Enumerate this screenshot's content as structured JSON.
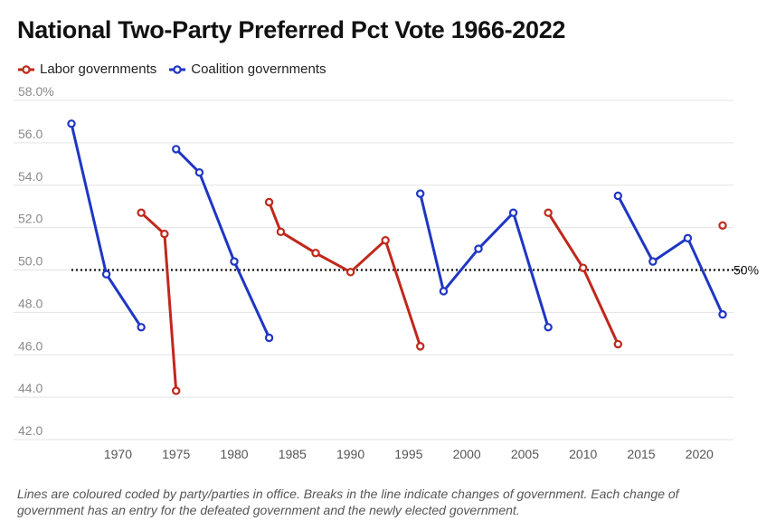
{
  "title": "National Two-Party Preferred Pct Vote 1966-2022",
  "footnote": "Lines are coloured coded by party/parties in office. Breaks in the line indicate changes of government. Each change of government has an entry for the defeated government and the newly elected government.",
  "colors": {
    "labor": "#c0281b",
    "coalition": "#1f36c4",
    "reference": "#111111",
    "grid": "#e3e3e3",
    "axis_text": "#8a8a8a"
  },
  "chart_data": {
    "type": "line",
    "title": "National Two-Party Preferred Pct Vote 1966-2022",
    "xlabel": "",
    "ylabel": "",
    "xlim": [
      1966,
      2022
    ],
    "ylim": [
      42,
      58
    ],
    "y_ticks": [
      "58.0%",
      "56.0",
      "54.0",
      "52.0",
      "50.0",
      "48.0",
      "46.0",
      "44.0",
      "42.0"
    ],
    "y_tick_values": [
      58,
      56,
      54,
      52,
      50,
      48,
      46,
      44,
      42
    ],
    "x_ticks": [
      1970,
      1975,
      1980,
      1985,
      1990,
      1995,
      2000,
      2005,
      2010,
      2015,
      2020
    ],
    "grid": true,
    "legend_position": "top-left",
    "reference_line": {
      "value": 50,
      "label": "50%",
      "style": "dotted"
    },
    "legend": [
      {
        "name": "Labor governments",
        "color": "#c0281b"
      },
      {
        "name": "Coalition governments",
        "color": "#1f36c4"
      }
    ],
    "series": [
      {
        "party": "coalition",
        "points": [
          [
            1966,
            56.9
          ],
          [
            1969,
            49.8
          ],
          [
            1972,
            47.3
          ]
        ]
      },
      {
        "party": "labor",
        "points": [
          [
            1972,
            52.7
          ],
          [
            1974,
            51.7
          ],
          [
            1975,
            44.3
          ]
        ]
      },
      {
        "party": "coalition",
        "points": [
          [
            1975,
            55.7
          ],
          [
            1977,
            54.6
          ],
          [
            1980,
            50.4
          ],
          [
            1983,
            46.8
          ]
        ]
      },
      {
        "party": "labor",
        "points": [
          [
            1983,
            53.2
          ],
          [
            1984,
            51.8
          ],
          [
            1987,
            50.8
          ],
          [
            1990,
            49.9
          ],
          [
            1993,
            51.4
          ],
          [
            1996,
            46.4
          ]
        ]
      },
      {
        "party": "coalition",
        "points": [
          [
            1996,
            53.6
          ],
          [
            1998,
            49.0
          ],
          [
            2001,
            51.0
          ],
          [
            2004,
            52.7
          ],
          [
            2007,
            47.3
          ]
        ]
      },
      {
        "party": "labor",
        "points": [
          [
            2007,
            52.7
          ],
          [
            2010,
            50.1
          ],
          [
            2013,
            46.5
          ]
        ]
      },
      {
        "party": "coalition",
        "points": [
          [
            2013,
            53.5
          ],
          [
            2016,
            50.4
          ],
          [
            2019,
            51.5
          ],
          [
            2022,
            47.9
          ]
        ]
      },
      {
        "party": "labor",
        "points": [
          [
            2022,
            52.1
          ]
        ]
      }
    ]
  }
}
